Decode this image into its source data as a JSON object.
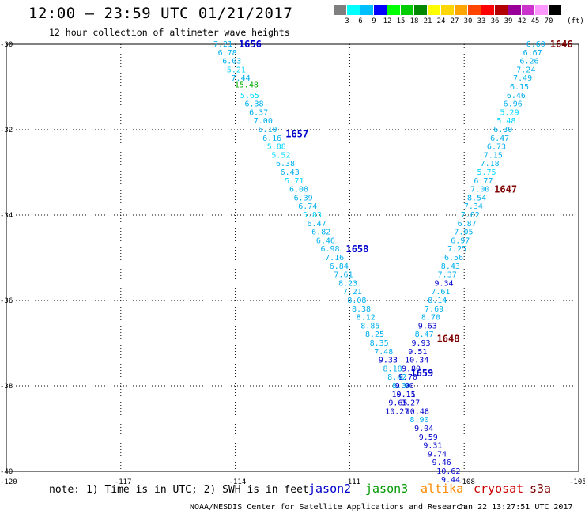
{
  "header": {
    "title": "12:00 – 23:59 UTC 01/21/2017",
    "subtitle": "12 hour collection of altimeter wave heights"
  },
  "colorbar": {
    "unit": "(ft)",
    "colors": [
      "#7f7f7f",
      "#00ffff",
      "#00bfff",
      "#0000ff",
      "#00ff00",
      "#00cc00",
      "#008800",
      "#ffff00",
      "#ffd700",
      "#ffa500",
      "#ff4500",
      "#ff0000",
      "#b30000",
      "#990099",
      "#cc33cc",
      "#ff99ff",
      "#000000"
    ],
    "labels": [
      "3",
      "6",
      "9",
      "12",
      "15",
      "18",
      "21",
      "24",
      "27",
      "30",
      "33",
      "36",
      "39",
      "42",
      "45",
      "70"
    ]
  },
  "map": {
    "lon_labels": [
      "-120",
      "-117",
      "-114",
      "-111",
      "-108",
      "-105"
    ],
    "lat_labels": [
      "-30",
      "-32",
      "-34",
      "-36",
      "-38",
      "-40"
    ]
  },
  "tracks": [
    {
      "satellite": "jason2",
      "time_labels": [
        {
          "text": "1656",
          "lat": -30.0
        },
        {
          "text": "1657",
          "lat": -32.1
        },
        {
          "text": "1658",
          "lat": -34.8
        },
        {
          "text": "1659",
          "lat": -37.7
        }
      ],
      "values": [
        {
          "text": "7.21",
          "lat": -30.0
        },
        {
          "text": "6.78",
          "lat": -30.2
        },
        {
          "text": "6.03",
          "lat": -30.4
        },
        {
          "text": "5.21",
          "lat": -30.6
        },
        {
          "text": "7.44",
          "lat": -30.8
        },
        {
          "text": "15.48",
          "lat": -30.95
        },
        {
          "text": "5.65",
          "lat": -31.2
        },
        {
          "text": "6.38",
          "lat": -31.4
        },
        {
          "text": "6.37",
          "lat": -31.6
        },
        {
          "text": "7.00",
          "lat": -31.8
        },
        {
          "text": "6.10",
          "lat": -32.0
        },
        {
          "text": "6.16",
          "lat": -32.2
        },
        {
          "text": "5.88",
          "lat": -32.4
        },
        {
          "text": "5.52",
          "lat": -32.6
        },
        {
          "text": "6.38",
          "lat": -32.8
        },
        {
          "text": "6.43",
          "lat": -33.0
        },
        {
          "text": "5.71",
          "lat": -33.2
        },
        {
          "text": "6.08",
          "lat": -33.4
        },
        {
          "text": "6.39",
          "lat": -33.6
        },
        {
          "text": "6.74",
          "lat": -33.8
        },
        {
          "text": "5.83",
          "lat": -34.0
        },
        {
          "text": "6.47",
          "lat": -34.2
        },
        {
          "text": "6.82",
          "lat": -34.4
        },
        {
          "text": "6.46",
          "lat": -34.6
        },
        {
          "text": "6.98",
          "lat": -34.8
        },
        {
          "text": "7.16",
          "lat": -35.0
        },
        {
          "text": "6.84",
          "lat": -35.2
        },
        {
          "text": "7.61",
          "lat": -35.4
        },
        {
          "text": "8.23",
          "lat": -35.6
        },
        {
          "text": "7.21",
          "lat": -35.8
        },
        {
          "text": "8.08",
          "lat": -36.0
        },
        {
          "text": "8.38",
          "lat": -36.2
        },
        {
          "text": "8.12",
          "lat": -36.4
        },
        {
          "text": "8.85",
          "lat": -36.6
        },
        {
          "text": "8.25",
          "lat": -36.8
        },
        {
          "text": "8.35",
          "lat": -37.0
        },
        {
          "text": "7.48",
          "lat": -37.2
        },
        {
          "text": "9.33",
          "lat": -37.4
        },
        {
          "text": "8.18",
          "lat": -37.6
        },
        {
          "text": "8.42",
          "lat": -37.8
        },
        {
          "text": "8.30",
          "lat": -38.0
        },
        {
          "text": "9.11",
          "lat": -38.2
        },
        {
          "text": "9.27",
          "lat": -38.4
        },
        {
          "text": "10.48",
          "lat": -38.6
        },
        {
          "text": "8.90",
          "lat": -38.8
        },
        {
          "text": "9.04",
          "lat": -39.0
        },
        {
          "text": "9.59",
          "lat": -39.2
        },
        {
          "text": "9.31",
          "lat": -39.4
        },
        {
          "text": "9.74",
          "lat": -39.6
        },
        {
          "text": "9.46",
          "lat": -39.8
        },
        {
          "text": "10.62",
          "lat": -40.0
        },
        {
          "text": "9.44",
          "lat": -40.2
        }
      ]
    },
    {
      "satellite": "s3a",
      "time_labels": [
        {
          "text": "1646",
          "lat": -30.0
        },
        {
          "text": "1647",
          "lat": -33.4
        },
        {
          "text": "1648",
          "lat": -36.9
        }
      ],
      "values": [
        {
          "text": "6.60",
          "lat": -30.0
        },
        {
          "text": "6.67",
          "lat": -30.2
        },
        {
          "text": "6.26",
          "lat": -30.4
        },
        {
          "text": "7.24",
          "lat": -30.6
        },
        {
          "text": "7.49",
          "lat": -30.8
        },
        {
          "text": "6.15",
          "lat": -31.0
        },
        {
          "text": "6.46",
          "lat": -31.2
        },
        {
          "text": "6.96",
          "lat": -31.4
        },
        {
          "text": "5.29",
          "lat": -31.6
        },
        {
          "text": "5.48",
          "lat": -31.8
        },
        {
          "text": "6.30",
          "lat": -32.0
        },
        {
          "text": "6.47",
          "lat": -32.2
        },
        {
          "text": "6.73",
          "lat": -32.4
        },
        {
          "text": "7.15",
          "lat": -32.6
        },
        {
          "text": "7.18",
          "lat": -32.8
        },
        {
          "text": "5.75",
          "lat": -33.0
        },
        {
          "text": "6.77",
          "lat": -33.2
        },
        {
          "text": "7.00",
          "lat": -33.4
        },
        {
          "text": "8.54",
          "lat": -33.6
        },
        {
          "text": "7.34",
          "lat": -33.8
        },
        {
          "text": "7.02",
          "lat": -34.0
        },
        {
          "text": "6.87",
          "lat": -34.2
        },
        {
          "text": "7.05",
          "lat": -34.4
        },
        {
          "text": "6.97",
          "lat": -34.6
        },
        {
          "text": "7.25",
          "lat": -34.8
        },
        {
          "text": "6.56",
          "lat": -35.0
        },
        {
          "text": "8.43",
          "lat": -35.2
        },
        {
          "text": "7.37",
          "lat": -35.4
        },
        {
          "text": "9.34",
          "lat": -35.6
        },
        {
          "text": "7.61",
          "lat": -35.8
        },
        {
          "text": "8.14",
          "lat": -36.0
        },
        {
          "text": "7.69",
          "lat": -36.2
        },
        {
          "text": "8.70",
          "lat": -36.4
        },
        {
          "text": "9.63",
          "lat": -36.6
        },
        {
          "text": "8.47",
          "lat": -36.8
        },
        {
          "text": "9.93",
          "lat": -37.0
        },
        {
          "text": "9.51",
          "lat": -37.2
        },
        {
          "text": "10.34",
          "lat": -37.4
        },
        {
          "text": "9.80",
          "lat": -37.6
        },
        {
          "text": "9.70",
          "lat": -37.8
        },
        {
          "text": "9.90",
          "lat": -38.0
        },
        {
          "text": "10.15",
          "lat": -38.2
        },
        {
          "text": "9.65",
          "lat": -38.4
        },
        {
          "text": "10.27",
          "lat": -38.6
        }
      ]
    }
  ],
  "footer": {
    "note": "note: 1) Time is in UTC; 2) SWH is in feet",
    "legend": [
      {
        "label": "jason2",
        "color": "#0000cc"
      },
      {
        "label": "jason3",
        "color": "#009900"
      },
      {
        "label": "altika",
        "color": "#ff8800"
      },
      {
        "label": "cryosat",
        "color": "#cc0000"
      },
      {
        "label": "s3a",
        "color": "#800000"
      }
    ],
    "credit": "NOAA/NESDIS Center for Satellite Applications and Research",
    "timestamp": "Jan 22 13:27:51 UTC 2017"
  }
}
